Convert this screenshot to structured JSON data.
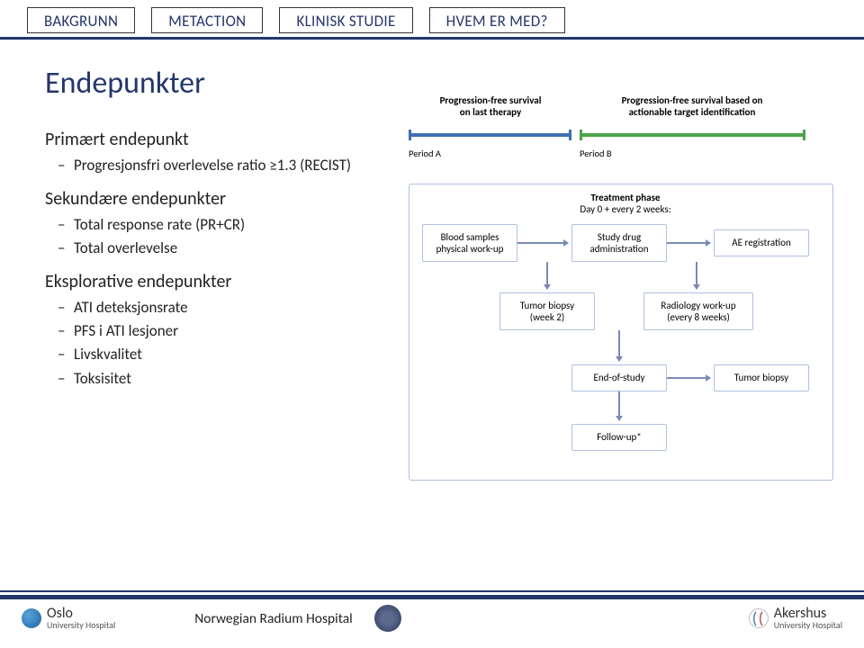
{
  "tabs": [
    "BAKGRUNN",
    "METACTION",
    "KLINISK STUDIE",
    "HVEM ER MED?"
  ],
  "title": "Endepunkter",
  "left": {
    "primary_heading": "Primært endepunkt",
    "primary_items": [
      "Progresjonsfri overlevelse ratio ≥1.3 (RECIST)"
    ],
    "secondary_heading": "Sekundære endepunkter",
    "secondary_items": [
      "Total response rate (PR+CR)",
      "Total overlevelse"
    ],
    "exploratory_heading": "Eksplorative endepunkter",
    "exploratory_items": [
      "ATI deteksjonsrate",
      "PFS i ATI lesjoner",
      "Livskvalitet",
      "Toksisitet"
    ]
  },
  "timeline": {
    "label_a": "Progression-free survival\non last therapy",
    "label_b": "Progression-free survival based on\nactionable target identification",
    "period_a": "Period A",
    "period_b": "Period B",
    "color_a": "#3d6fb5",
    "color_b": "#4aa34a"
  },
  "flowchart": {
    "border_color": "#b0bfe0",
    "treatment_title1": "Treatment phase",
    "treatment_title2": "Day 0 + every 2 weeks:",
    "boxes": {
      "blood": "Blood samples\nphysical work-up",
      "drug": "Study drug\nadministration",
      "ae": "AE registration",
      "biopsy1": "Tumor biopsy\n(week 2)",
      "radio": "Radiology work-up\n(every 8 weeks)",
      "eos": "End-of-study",
      "biopsy2": "Tumor biopsy",
      "followup": "Follow-up*"
    }
  },
  "footer": {
    "oslo": "Oslo",
    "oslo_sub": "University Hospital",
    "radium": "Norwegian Radium Hospital",
    "aker": "Akershus",
    "aker_sub": "University Hospital"
  }
}
